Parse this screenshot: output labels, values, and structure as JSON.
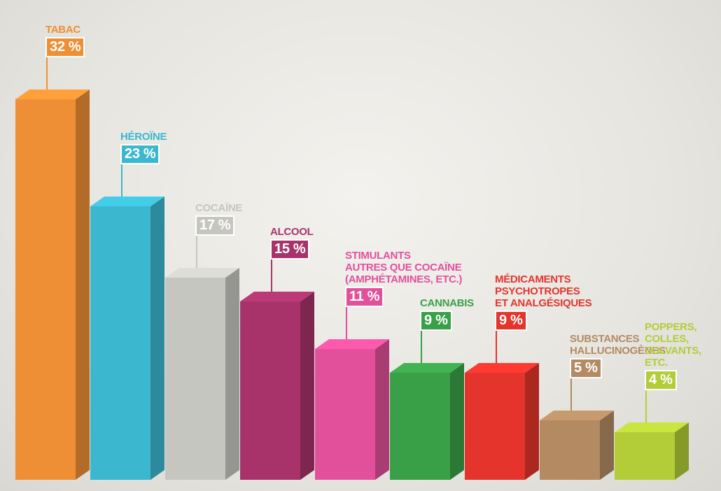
{
  "chart_data": {
    "type": "bar",
    "categories": [
      "TABAC",
      "HÉROÏNE",
      "COCAÏNE",
      "ALCOOL",
      "STIMULANTS\nAUTRES QUE COCAÏNE\n(AMPHÉTAMINES, ETC.)",
      "CANNABIS",
      "MÉDICAMENTS\nPSYCHOTROPES\nET ANALGÉSIQUES",
      "SUBSTANCES\nHALLUCINOGÈNES",
      "POPPERS,\nCOLLES,\nSOLVANTS,\nETC."
    ],
    "values": [
      32,
      23,
      17,
      15,
      11,
      9,
      9,
      5,
      4
    ],
    "value_labels": [
      "32 %",
      "23 %",
      "17 %",
      "15 %",
      "11 %",
      "9 %",
      "9 %",
      "5 %",
      "4 %"
    ],
    "colors": [
      "#ef8f35",
      "#3cb7d0",
      "#c6c6c1",
      "#a8336b",
      "#e2509b",
      "#3aa047",
      "#e4342b",
      "#b38a62",
      "#b3cd38"
    ]
  }
}
